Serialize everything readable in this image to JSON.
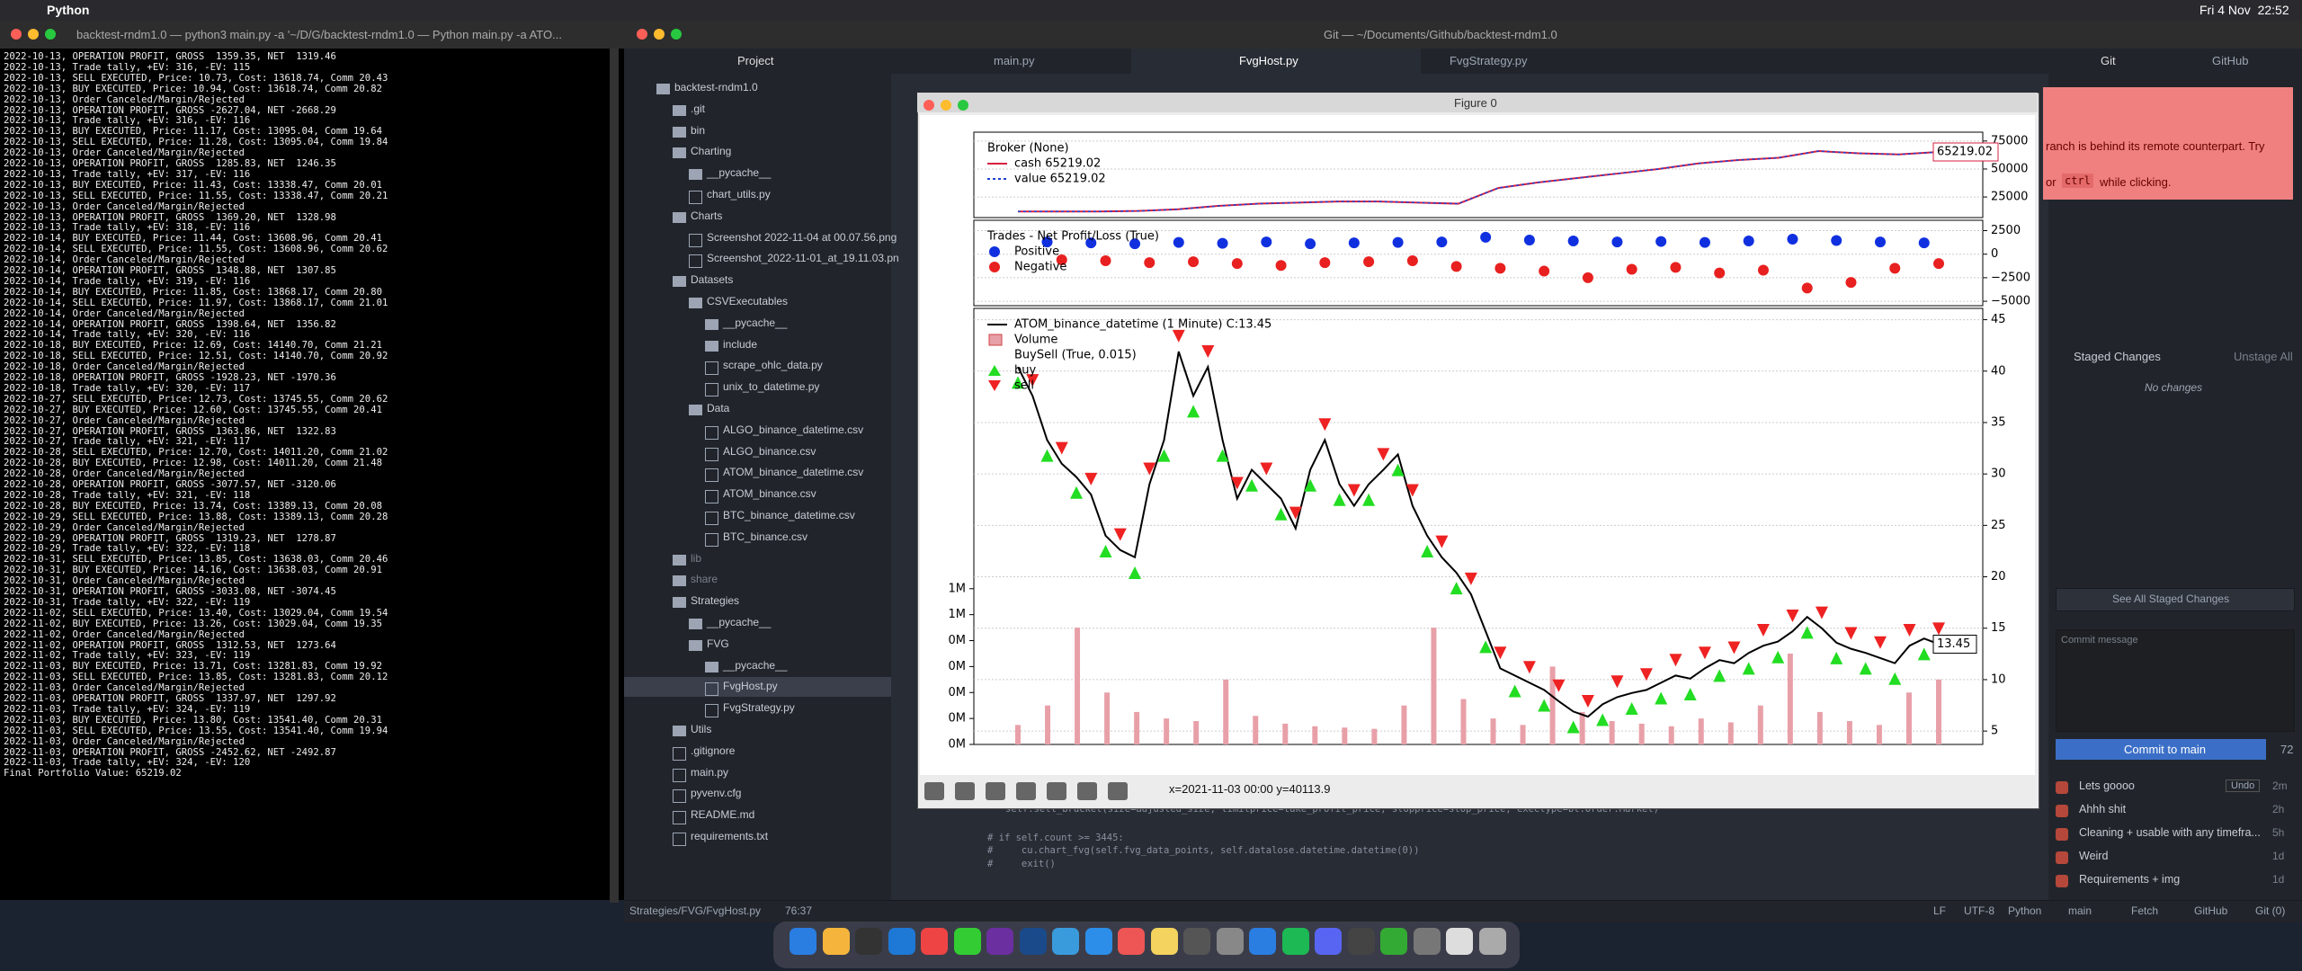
{
  "menu_bar": {
    "app": "Python",
    "clock": "Fri 4 Nov  22:52"
  },
  "terminal": {
    "title": "backtest-rndm1.0 — python3 main.py -a '~/D/G/backtest-rndm1.0 — Python main.py -a ATO...",
    "lines": [
      "2022-10-13, OPERATION PROFIT, GROSS  1359.35, NET  1319.46",
      "2022-10-13, Trade tally, +EV: 316, -EV: 115",
      "2022-10-13, SELL EXECUTED, Price: 10.73, Cost: 13618.74, Comm 20.43",
      "2022-10-13, BUY EXECUTED, Price: 10.94, Cost: 13618.74, Comm 20.82",
      "2022-10-13, Order Canceled/Margin/Rejected",
      "2022-10-13, OPERATION PROFIT, GROSS -2627.04, NET -2668.29",
      "2022-10-13, Trade tally, +EV: 316, -EV: 116",
      "2022-10-13, BUY EXECUTED, Price: 11.17, Cost: 13095.04, Comm 19.64",
      "2022-10-13, SELL EXECUTED, Price: 11.28, Cost: 13095.04, Comm 19.84",
      "2022-10-13, Order Canceled/Margin/Rejected",
      "2022-10-13, OPERATION PROFIT, GROSS  1285.83, NET  1246.35",
      "2022-10-13, Trade tally, +EV: 317, -EV: 116",
      "2022-10-13, BUY EXECUTED, Price: 11.43, Cost: 13338.47, Comm 20.01",
      "2022-10-13, SELL EXECUTED, Price: 11.55, Cost: 13338.47, Comm 20.21",
      "2022-10-13, Order Canceled/Margin/Rejected",
      "2022-10-13, OPERATION PROFIT, GROSS  1369.20, NET  1328.98",
      "2022-10-13, Trade tally, +EV: 318, -EV: 116",
      "2022-10-14, BUY EXECUTED, Price: 11.44, Cost: 13608.96, Comm 20.41",
      "2022-10-14, SELL EXECUTED, Price: 11.55, Cost: 13608.96, Comm 20.62",
      "2022-10-14, Order Canceled/Margin/Rejected",
      "2022-10-14, OPERATION PROFIT, GROSS  1348.88, NET  1307.85",
      "2022-10-14, Trade tally, +EV: 319, -EV: 116",
      "2022-10-14, BUY EXECUTED, Price: 11.85, Cost: 13868.17, Comm 20.80",
      "2022-10-14, SELL EXECUTED, Price: 11.97, Cost: 13868.17, Comm 21.01",
      "2022-10-14, Order Canceled/Margin/Rejected",
      "2022-10-14, OPERATION PROFIT, GROSS  1398.64, NET  1356.82",
      "2022-10-14, Trade tally, +EV: 320, -EV: 116",
      "2022-10-18, BUY EXECUTED, Price: 12.69, Cost: 14140.70, Comm 21.21",
      "2022-10-18, SELL EXECUTED, Price: 12.51, Cost: 14140.70, Comm 20.92",
      "2022-10-18, Order Canceled/Margin/Rejected",
      "2022-10-18, OPERATION PROFIT, GROSS -1928.23, NET -1970.36",
      "2022-10-18, Trade tally, +EV: 320, -EV: 117",
      "2022-10-27, SELL EXECUTED, Price: 12.73, Cost: 13745.55, Comm 20.62",
      "2022-10-27, BUY EXECUTED, Price: 12.60, Cost: 13745.55, Comm 20.41",
      "2022-10-27, Order Canceled/Margin/Rejected",
      "2022-10-27, OPERATION PROFIT, GROSS  1363.86, NET  1322.83",
      "2022-10-27, Trade tally, +EV: 321, -EV: 117",
      "2022-10-28, SELL EXECUTED, Price: 12.70, Cost: 14011.20, Comm 21.02",
      "2022-10-28, BUY EXECUTED, Price: 12.98, Cost: 14011.20, Comm 21.48",
      "2022-10-28, Order Canceled/Margin/Rejected",
      "2022-10-28, OPERATION PROFIT, GROSS -3077.57, NET -3120.06",
      "2022-10-28, Trade tally, +EV: 321, -EV: 118",
      "2022-10-28, BUY EXECUTED, Price: 13.74, Cost: 13389.13, Comm 20.08",
      "2022-10-29, SELL EXECUTED, Price: 13.88, Cost: 13389.13, Comm 20.28",
      "2022-10-29, Order Canceled/Margin/Rejected",
      "2022-10-29, OPERATION PROFIT, GROSS  1319.23, NET  1278.87",
      "2022-10-29, Trade tally, +EV: 322, -EV: 118",
      "2022-10-31, SELL EXECUTED, Price: 13.85, Cost: 13638.03, Comm 20.46",
      "2022-10-31, BUY EXECUTED, Price: 14.16, Cost: 13638.03, Comm 20.91",
      "2022-10-31, Order Canceled/Margin/Rejected",
      "2022-10-31, OPERATION PROFIT, GROSS -3033.08, NET -3074.45",
      "2022-10-31, Trade tally, +EV: 322, -EV: 119",
      "2022-11-02, SELL EXECUTED, Price: 13.40, Cost: 13029.04, Comm 19.54",
      "2022-11-02, BUY EXECUTED, Price: 13.26, Cost: 13029.04, Comm 19.35",
      "2022-11-02, Order Canceled/Margin/Rejected",
      "2022-11-02, OPERATION PROFIT, GROSS  1312.53, NET  1273.64",
      "2022-11-02, Trade tally, +EV: 323, -EV: 119",
      "2022-11-03, BUY EXECUTED, Price: 13.71, Cost: 13281.83, Comm 19.92",
      "2022-11-03, SELL EXECUTED, Price: 13.85, Cost: 13281.83, Comm 20.12",
      "2022-11-03, Order Canceled/Margin/Rejected",
      "2022-11-03, OPERATION PROFIT, GROSS  1337.97, NET  1297.92",
      "2022-11-03, Trade tally, +EV: 324, -EV: 119",
      "2022-11-03, BUY EXECUTED, Price: 13.80, Cost: 13541.40, Comm 20.31",
      "2022-11-03, SELL EXECUTED, Price: 13.55, Cost: 13541.40, Comm 19.94",
      "2022-11-03, Order Canceled/Margin/Rejected",
      "2022-11-03, OPERATION PROFIT, GROSS -2452.62, NET -2492.87",
      "2022-11-03, Trade tally, +EV: 324, -EV: 120",
      "Final Portfolio Value: 65219.02"
    ]
  },
  "editor": {
    "title": "Git — ~/Documents/Github/backtest-rndm1.0",
    "tree_header": "Project",
    "tree": [
      "backtest-rndm1.0",
      ".git",
      "bin",
      "Charting",
      "__pycache__",
      "chart_utils.py",
      "Charts",
      "Screenshot 2022-11-04 at 00.07.56.png",
      "Screenshot_2022-11-01_at_19.11.03.pn",
      "Datasets",
      "CSVExecutables",
      "__pycache__",
      "include",
      "scrape_ohlc_data.py",
      "unix_to_datetime.py",
      "Data",
      "ALGO_binance_datetime.csv",
      "ALGO_binance.csv",
      "ATOM_binance_datetime.csv",
      "ATOM_binance.csv",
      "BTC_binance_datetime.csv",
      "BTC_binance.csv",
      "lib",
      "share",
      "Strategies",
      "__pycache__",
      "FVG",
      "__pycache__",
      "FvgHost.py",
      "FvgStrategy.py",
      "Utils",
      ".gitignore",
      "main.py",
      "pyvenv.cfg",
      "README.md",
      "requirements.txt"
    ],
    "tabs": [
      "main.py",
      "FvgHost.py",
      "FvgStrategy.py"
    ],
    "code": [
      "self.sell_bracket(size=adjusted_size, limitprice=take_profit_price, stopprice=stop_price, exectype=bt.Order.Market)",
      "# if self.count >= 3445:",
      "#     cu.chart_fvg(self.fvg_data_points, self.datalose.datetime.datetime(0))",
      "#     exit()"
    ],
    "status": {
      "path": "Strategies/FVG/FvgHost.py",
      "cursor": "76:37",
      "right": [
        "LF",
        "UTF-8",
        "Python",
        "main",
        "Fetch",
        "GitHub",
        "Git (0)"
      ]
    }
  },
  "git_panel": {
    "tabs": [
      "Git",
      "GitHub"
    ],
    "notification": {
      "line1": "ranch is behind its remote counterpart. Try",
      "before_kbd": "or",
      "kbd": "ctrl",
      "after_kbd": "while clicking."
    },
    "staged_header": "Staged Changes",
    "unstage": "Unstage All",
    "empty": "No changes",
    "see_all": "See All Staged Changes",
    "commit_placeholder": "Commit message",
    "commit_button": "Commit to main",
    "remaining": "72",
    "commits": [
      {
        "message": "Lets goooo",
        "undo": "Undo",
        "time": "2m"
      },
      {
        "message": "Ahhh shit",
        "time": "2h"
      },
      {
        "message": "Cleaning + usable with any timefra...",
        "time": "5h"
      },
      {
        "message": "Weird",
        "time": "1d"
      },
      {
        "message": "Requirements + img",
        "time": "1d"
      }
    ]
  },
  "figure_window": {
    "title": "Figure 0",
    "status": "x=2021-11-03 00:00 y=40113.9"
  },
  "chart_data": [
    {
      "type": "line",
      "title": "Broker (None)",
      "grid": true,
      "ylim": [
        6600,
        82900
      ],
      "yticks": [
        25000,
        50000,
        75000
      ],
      "value_label": "65219.02",
      "series": [
        {
          "name": "cash 65219.02",
          "color": "#d62040",
          "values": [
            12000,
            12000,
            12000,
            12500,
            14000,
            17000,
            19000,
            20000,
            21000,
            21000,
            20000,
            19000,
            33000,
            38000,
            42000,
            46000,
            50000,
            55000,
            58000,
            60000,
            66000,
            64000,
            63000,
            65219.02
          ]
        },
        {
          "name": "value 65219.02",
          "color": "#1f3fd0",
          "values": [
            12000,
            12000,
            12000,
            12500,
            14000,
            17000,
            19000,
            20000,
            21000,
            21000,
            20000,
            19000,
            33000,
            38000,
            42000,
            46000,
            50000,
            55000,
            58000,
            60000,
            66000,
            64000,
            63000,
            65219.02
          ]
        }
      ]
    },
    {
      "type": "scatter",
      "title": "Trades - Net Profit/Loss (True)",
      "grid": true,
      "xlim": [
        0,
        63
      ],
      "ylim": [
        -5470,
        3600
      ],
      "yticks": [
        {
          "value": -5000,
          "label": "−5000"
        },
        {
          "value": -2500,
          "label": "−2500"
        },
        0,
        2500
      ],
      "series": [
        {
          "name": "Positive",
          "color": "#1030e0",
          "x": [
            2,
            5,
            8,
            11,
            14,
            17,
            20,
            23,
            26,
            29,
            32,
            35,
            38,
            41,
            44,
            47,
            50,
            53,
            56,
            59,
            62
          ],
          "values": [
            1300,
            1200,
            1100,
            1250,
            1150,
            1300,
            1100,
            1200,
            1250,
            1300,
            1800,
            1500,
            1400,
            1300,
            1350,
            1250,
            1400,
            1600,
            1450,
            1300,
            1200
          ]
        },
        {
          "name": "Negative",
          "color": "#e82020",
          "x": [
            3,
            6,
            9,
            12,
            15,
            18,
            21,
            24,
            27,
            30,
            33,
            36,
            39,
            42,
            45,
            48,
            51,
            54,
            57,
            60,
            63
          ],
          "values": [
            -600,
            -700,
            -900,
            -800,
            -1000,
            -1200,
            -900,
            -800,
            -700,
            -1300,
            -1500,
            -1800,
            -2500,
            -1600,
            -1400,
            -2000,
            -1700,
            -3600,
            -3000,
            -1500,
            -1000
          ]
        }
      ]
    },
    {
      "type": "line",
      "subtitle": "BuySell (True, 0.015)",
      "grid": true,
      "ylim": [
        3.7,
        46.1
      ],
      "yticks": [
        5,
        10,
        15,
        20,
        25,
        30,
        35,
        40,
        45
      ],
      "value_label": "13.45",
      "series": [
        {
          "name": "ATOM_binance_datetime (1 Minute) C:13.45",
          "color": "#000000",
          "values": [
            40.4,
            37.6,
            33.3,
            31,
            29.7,
            28,
            24,
            22.6,
            21.9,
            29,
            33.3,
            41.9,
            37.6,
            40.4,
            33.3,
            27.6,
            30.4,
            29,
            27.6,
            24.7,
            30.4,
            33.3,
            29,
            26.9,
            29,
            30.4,
            31.9,
            26.9,
            24,
            21.9,
            20.4,
            18.3,
            14.7,
            11.1,
            10.4,
            9.7,
            9,
            7.9,
            6.9,
            6.4,
            7.6,
            8.3,
            8.7,
            9,
            9.7,
            10.4,
            10.1,
            11.1,
            11.9,
            11.6,
            12.6,
            13.3,
            13.7,
            14.7,
            16.1,
            15,
            13.6,
            13,
            12.6,
            12.1,
            11.6,
            13.3,
            14,
            13.45
          ]
        },
        {
          "name": "buy",
          "color": "#22dd22",
          "marker": "triangle-up",
          "values": [
            38.9,
            null,
            31.8,
            null,
            28.2,
            null,
            22.5,
            null,
            20.4,
            null,
            31.8,
            null,
            36.1,
            null,
            31.8,
            null,
            28.9,
            null,
            26.1,
            null,
            28.9,
            null,
            27.5,
            null,
            27.5,
            null,
            30.4,
            null,
            22.5,
            null,
            18.9,
            null,
            13.2,
            null,
            8.9,
            null,
            7.5,
            null,
            5.4,
            null,
            6.1,
            null,
            7.2,
            null,
            8.2,
            null,
            8.6,
            null,
            10.4,
            null,
            11.1,
            null,
            12.2,
            null,
            14.6,
            null,
            12.1,
            null,
            11.1,
            null,
            10.1,
            null,
            12.5,
            null
          ]
        },
        {
          "name": "sell",
          "color": "#ee2222",
          "marker": "triangle-down",
          "values": [
            null,
            39.1,
            null,
            32.5,
            null,
            29.5,
            null,
            24.1,
            null,
            30.5,
            null,
            43.4,
            null,
            41.9,
            null,
            29.1,
            null,
            30.5,
            null,
            26.2,
            null,
            34.8,
            null,
            28.4,
            null,
            31.9,
            null,
            28.4,
            null,
            23.4,
            null,
            19.8,
            null,
            12.6,
            null,
            11.2,
            null,
            9.4,
            null,
            7.9,
            null,
            9.8,
            null,
            10.5,
            null,
            11.9,
            null,
            12.6,
            null,
            13.1,
            null,
            14.8,
            null,
            16.2,
            null,
            16.5,
            null,
            14.5,
            null,
            13.6,
            null,
            14.8,
            null,
            14.95
          ]
        }
      ],
      "volume": {
        "name": "Volume",
        "color": "#e8a0a8",
        "ylim": [
          0,
          3360000
        ],
        "yticks": [
          {
            "value": 0,
            "label": "0M"
          },
          {
            "value": 200000,
            "label": "0M"
          },
          {
            "value": 400000,
            "label": "0M"
          },
          {
            "value": 600000,
            "label": "0M"
          },
          {
            "value": 800000,
            "label": "0M"
          },
          {
            "value": 1000000,
            "label": "1M"
          },
          {
            "value": 1200000,
            "label": "1M"
          }
        ],
        "values": [
          150000,
          300000,
          900000,
          400000,
          250000,
          200000,
          180000,
          500000,
          220000,
          160000,
          140000,
          130000,
          120000,
          300000,
          900000,
          350000,
          200000,
          150000,
          600000,
          250000,
          180000,
          160000,
          140000,
          200000,
          170000,
          300000,
          700000,
          250000,
          180000,
          150000,
          400000,
          500000
        ]
      }
    }
  ]
}
